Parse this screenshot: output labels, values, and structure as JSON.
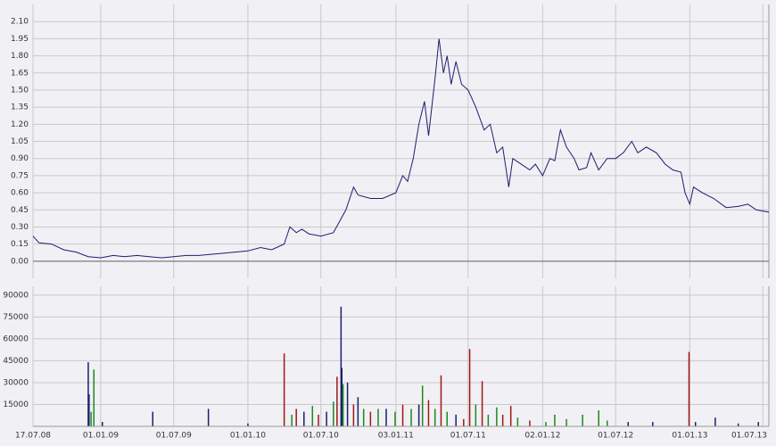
{
  "chart_data": [
    {
      "type": "line",
      "color": "#1a1f6e",
      "grid": true,
      "xlim": [
        "2008-07-17",
        "2013-07-16"
      ],
      "ylim": [
        -0.15,
        2.25
      ],
      "yticks": [
        {
          "value": 0,
          "label": "0.00"
        },
        {
          "value": 0.15,
          "label": "0.15"
        },
        {
          "value": 0.3,
          "label": "0.30"
        },
        {
          "value": 0.45,
          "label": "0.45"
        },
        {
          "value": 0.6,
          "label": "0.60"
        },
        {
          "value": 0.75,
          "label": "0.75"
        },
        {
          "value": 0.9,
          "label": "0.90"
        },
        {
          "value": 1.05,
          "label": "1.05"
        },
        {
          "value": 1.2,
          "label": "1.20"
        },
        {
          "value": 1.35,
          "label": "1.35"
        },
        {
          "value": 1.5,
          "label": "1.50"
        },
        {
          "value": 1.65,
          "label": "1.65"
        },
        {
          "value": 1.8,
          "label": "1.80"
        },
        {
          "value": 1.95,
          "label": "1.95"
        },
        {
          "value": 2.1,
          "label": "2.10"
        }
      ],
      "x": [
        "2008-07-17",
        "2008-08-01",
        "2008-09-01",
        "2008-10-01",
        "2008-11-01",
        "2008-12-01",
        "2009-01-01",
        "2009-02-01",
        "2009-03-01",
        "2009-04-01",
        "2009-05-01",
        "2009-06-01",
        "2009-07-01",
        "2009-08-01",
        "2009-09-01",
        "2009-10-01",
        "2009-11-01",
        "2009-12-01",
        "2010-01-01",
        "2010-02-01",
        "2010-03-01",
        "2010-04-01",
        "2010-04-15",
        "2010-05-01",
        "2010-05-15",
        "2010-06-01",
        "2010-07-01",
        "2010-08-01",
        "2010-09-01",
        "2010-09-20",
        "2010-10-01",
        "2010-11-01",
        "2010-12-01",
        "2011-01-03",
        "2011-01-20",
        "2011-02-01",
        "2011-02-15",
        "2011-03-01",
        "2011-03-15",
        "2011-03-25",
        "2011-04-10",
        "2011-04-20",
        "2011-05-01",
        "2011-05-10",
        "2011-05-20",
        "2011-06-01",
        "2011-06-15",
        "2011-07-01",
        "2011-07-20",
        "2011-08-10",
        "2011-08-25",
        "2011-09-10",
        "2011-09-25",
        "2011-10-10",
        "2011-10-20",
        "2011-11-10",
        "2011-12-01",
        "2011-12-15",
        "2012-01-02",
        "2012-01-20",
        "2012-02-01",
        "2012-02-15",
        "2012-03-01",
        "2012-03-20",
        "2012-04-01",
        "2012-04-20",
        "2012-05-01",
        "2012-05-20",
        "2012-06-10",
        "2012-07-01",
        "2012-07-20",
        "2012-08-10",
        "2012-08-25",
        "2012-09-15",
        "2012-10-10",
        "2012-11-01",
        "2012-11-20",
        "2012-12-10",
        "2012-12-20",
        "2013-01-01",
        "2013-01-10",
        "2013-02-01",
        "2013-03-01",
        "2013-04-01",
        "2013-05-01",
        "2013-05-25",
        "2013-06-15",
        "2013-07-16"
      ],
      "values": [
        0.22,
        0.16,
        0.15,
        0.1,
        0.08,
        0.04,
        0.03,
        0.05,
        0.04,
        0.05,
        0.04,
        0.03,
        0.04,
        0.05,
        0.05,
        0.06,
        0.07,
        0.08,
        0.09,
        0.12,
        0.1,
        0.15,
        0.3,
        0.25,
        0.28,
        0.24,
        0.22,
        0.25,
        0.45,
        0.65,
        0.58,
        0.55,
        0.55,
        0.6,
        0.75,
        0.7,
        0.9,
        1.2,
        1.4,
        1.1,
        1.6,
        1.95,
        1.65,
        1.8,
        1.55,
        1.75,
        1.55,
        1.5,
        1.35,
        1.15,
        1.2,
        0.95,
        1.0,
        0.65,
        0.9,
        0.85,
        0.8,
        0.85,
        0.75,
        0.9,
        0.88,
        1.15,
        1.0,
        0.9,
        0.8,
        0.82,
        0.95,
        0.8,
        0.9,
        0.9,
        0.95,
        1.05,
        0.95,
        1.0,
        0.95,
        0.85,
        0.8,
        0.78,
        0.6,
        0.5,
        0.65,
        0.6,
        0.55,
        0.47,
        0.48,
        0.5,
        0.45,
        0.43
      ]
    },
    {
      "type": "bar",
      "grid": true,
      "xlim": [
        "2008-07-17",
        "2013-07-16"
      ],
      "ylim": [
        0,
        96000
      ],
      "yticks": [
        15000,
        30000,
        45000,
        60000,
        75000,
        90000
      ],
      "xticks": [
        {
          "value": "2008-07-17",
          "label": "17.07.08"
        },
        {
          "value": "2009-01-01",
          "label": "01.01.09"
        },
        {
          "value": "2009-07-01",
          "label": "01.07.09"
        },
        {
          "value": "2010-01-01",
          "label": "01.01.10"
        },
        {
          "value": "2010-07-01",
          "label": "01.07.10"
        },
        {
          "value": "2011-01-03",
          "label": "03.01.11"
        },
        {
          "value": "2011-07-01",
          "label": "01.07.11"
        },
        {
          "value": "2012-01-02",
          "label": "02.01.12"
        },
        {
          "value": "2012-07-01",
          "label": "01.07.12"
        },
        {
          "value": "2013-01-01",
          "label": "01.01.13"
        },
        {
          "value": "2013-07-01",
          "label": "01.07.13"
        }
      ],
      "x": [
        "2008-12-01",
        "2008-12-03",
        "2008-12-08",
        "2008-12-15",
        "2009-01-05",
        "2009-05-10",
        "2009-09-25",
        "2010-01-01",
        "2010-04-01",
        "2010-04-20",
        "2010-05-01",
        "2010-05-20",
        "2010-06-10",
        "2010-06-25",
        "2010-07-15",
        "2010-08-01",
        "2010-08-10",
        "2010-08-20",
        "2010-08-22",
        "2010-08-25",
        "2010-09-05",
        "2010-09-20",
        "2010-10-01",
        "2010-10-15",
        "2010-11-01",
        "2010-11-20",
        "2010-12-10",
        "2011-01-01",
        "2011-01-20",
        "2011-02-10",
        "2011-03-01",
        "2011-03-10",
        "2011-03-25",
        "2011-04-10",
        "2011-04-25",
        "2011-05-10",
        "2011-06-01",
        "2011-06-20",
        "2011-07-05",
        "2011-07-20",
        "2011-08-05",
        "2011-08-20",
        "2011-09-10",
        "2011-09-25",
        "2011-10-15",
        "2011-11-01",
        "2011-12-01",
        "2012-01-10",
        "2012-02-01",
        "2012-03-01",
        "2012-04-10",
        "2012-05-20",
        "2012-06-10",
        "2012-08-01",
        "2012-10-01",
        "2012-12-30",
        "2013-01-15",
        "2013-03-05",
        "2013-05-01",
        "2013-06-20"
      ],
      "values": [
        44000,
        22000,
        10000,
        39000,
        3000,
        10000,
        12000,
        2000,
        50000,
        8000,
        12000,
        10000,
        14000,
        8000,
        10000,
        17000,
        34000,
        82000,
        40000,
        29000,
        30000,
        15000,
        20000,
        12000,
        10000,
        12000,
        12000,
        10000,
        15000,
        12000,
        15000,
        28000,
        18000,
        12000,
        35000,
        10000,
        8000,
        5000,
        53000,
        15000,
        31000,
        8000,
        13000,
        8000,
        14000,
        6000,
        4000,
        3000,
        8000,
        5000,
        8000,
        11000,
        4000,
        3000,
        3000,
        51000,
        3000,
        6000,
        2000,
        3000
      ],
      "colors": [
        "#1a1f6e",
        "#1a1f6e",
        "#1c8a1c",
        "#1c8a1c",
        "#1a1f6e",
        "#1a1f6e",
        "#1a1f6e",
        "#1a1f6e",
        "#a01818",
        "#1c8a1c",
        "#a01818",
        "#1a1f6e",
        "#1c8a1c",
        "#a01818",
        "#1a1f6e",
        "#1c8a1c",
        "#a01818",
        "#1a1f6e",
        "#1a1f6e",
        "#1c8a1c",
        "#1a1f6e",
        "#a01818",
        "#1a1f6e",
        "#1c8a1c",
        "#a01818",
        "#1c8a1c",
        "#1a1f6e",
        "#1c8a1c",
        "#a01818",
        "#1c8a1c",
        "#1a1f6e",
        "#1c8a1c",
        "#a01818",
        "#1c8a1c",
        "#a01818",
        "#1c8a1c",
        "#1a1f6e",
        "#a01818",
        "#a01818",
        "#1c8a1c",
        "#a01818",
        "#1c8a1c",
        "#1c8a1c",
        "#a01818",
        "#a01818",
        "#1c8a1c",
        "#a01818",
        "#1c8a1c",
        "#1c8a1c",
        "#1c8a1c",
        "#1c8a1c",
        "#1c8a1c",
        "#1c8a1c",
        "#1a1f6e",
        "#1a1f6e",
        "#a01818",
        "#1a1f6e",
        "#1a1f6e",
        "#1a1f6e",
        "#1a1f6e"
      ]
    }
  ]
}
